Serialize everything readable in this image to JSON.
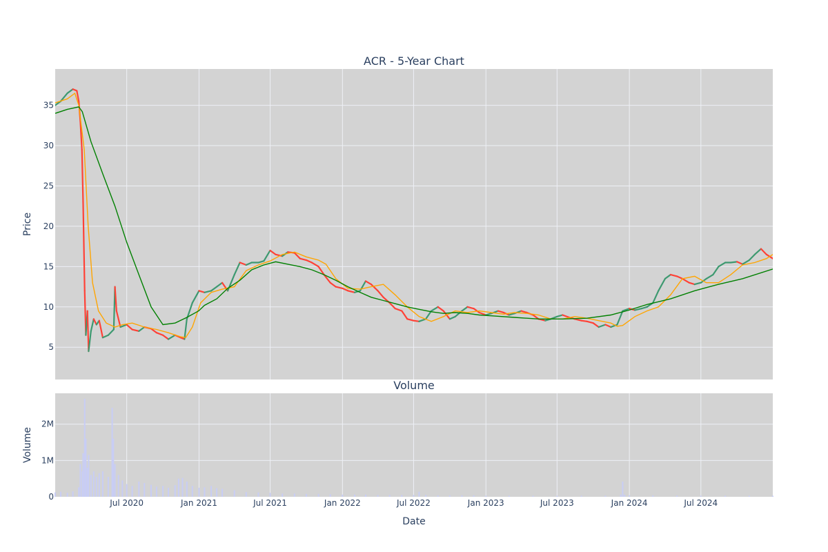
{
  "chart_data": [
    {
      "type": "candlestick",
      "title": "ACR - 5-Year Chart",
      "xlabel": "",
      "ylabel": "Price",
      "ylim": [
        1,
        39.5
      ],
      "xlim": [
        "2020-01-01",
        "2024-12-31"
      ],
      "yticks": [
        5,
        10,
        15,
        20,
        25,
        30,
        35
      ],
      "grid": true,
      "colors": {
        "up": "#3d9970",
        "down": "#ff4136",
        "plot_bg": "#d3d3d3",
        "grid": "#eef0f6"
      },
      "series": [
        {
          "name": "",
          "kind": "close",
          "color": "#3d9970",
          "x": [
            "2020-01-01",
            "2020-01-15",
            "2020-02-01",
            "2020-02-15",
            "2020-02-25",
            "2020-03-01",
            "2020-03-05",
            "2020-03-09",
            "2020-03-12",
            "2020-03-16",
            "2020-03-19",
            "2020-03-23",
            "2020-03-26",
            "2020-04-01",
            "2020-04-08",
            "2020-04-15",
            "2020-04-22",
            "2020-05-01",
            "2020-05-15",
            "2020-05-29",
            "2020-06-01",
            "2020-06-05",
            "2020-06-15",
            "2020-07-01",
            "2020-07-15",
            "2020-08-01",
            "2020-08-15",
            "2020-09-01",
            "2020-09-15",
            "2020-10-01",
            "2020-10-15",
            "2020-11-01",
            "2020-11-15",
            "2020-11-25",
            "2020-12-01",
            "2020-12-15",
            "2021-01-01",
            "2021-01-15",
            "2021-02-01",
            "2021-02-15",
            "2021-03-01",
            "2021-03-15",
            "2021-04-01",
            "2021-04-15",
            "2021-05-01",
            "2021-05-15",
            "2021-06-01",
            "2021-06-15",
            "2021-07-01",
            "2021-07-15",
            "2021-08-01",
            "2021-08-15",
            "2021-09-01",
            "2021-09-15",
            "2021-10-01",
            "2021-10-15",
            "2021-11-01",
            "2021-11-15",
            "2021-12-01",
            "2021-12-15",
            "2022-01-01",
            "2022-01-15",
            "2022-02-01",
            "2022-02-15",
            "2022-03-01",
            "2022-03-15",
            "2022-04-01",
            "2022-04-15",
            "2022-05-01",
            "2022-05-15",
            "2022-06-01",
            "2022-06-15",
            "2022-07-01",
            "2022-07-15",
            "2022-08-01",
            "2022-08-15",
            "2022-09-01",
            "2022-09-15",
            "2022-10-01",
            "2022-10-15",
            "2022-11-01",
            "2022-11-15",
            "2022-12-01",
            "2022-12-15",
            "2023-01-01",
            "2023-01-15",
            "2023-02-01",
            "2023-02-15",
            "2023-03-01",
            "2023-03-15",
            "2023-04-01",
            "2023-04-15",
            "2023-05-01",
            "2023-05-15",
            "2023-06-01",
            "2023-06-15",
            "2023-07-01",
            "2023-07-15",
            "2023-08-01",
            "2023-08-15",
            "2023-09-01",
            "2023-09-15",
            "2023-10-01",
            "2023-10-15",
            "2023-11-01",
            "2023-11-15",
            "2023-12-01",
            "2023-12-15",
            "2024-01-01",
            "2024-01-15",
            "2024-02-01",
            "2024-02-15",
            "2024-03-01",
            "2024-03-15",
            "2024-04-01",
            "2024-04-15",
            "2024-05-01",
            "2024-05-15",
            "2024-06-01",
            "2024-06-15",
            "2024-07-01",
            "2024-07-15",
            "2024-08-01",
            "2024-08-15",
            "2024-09-01",
            "2024-09-15",
            "2024-10-01",
            "2024-10-15",
            "2024-11-01",
            "2024-11-15",
            "2024-12-01",
            "2024-12-15",
            "2024-12-31"
          ],
          "y": [
            35.0,
            35.5,
            36.5,
            37.0,
            36.8,
            35.5,
            33.0,
            29.5,
            23.0,
            12.0,
            6.5,
            9.5,
            4.5,
            7.0,
            8.5,
            7.8,
            8.3,
            6.2,
            6.5,
            7.2,
            12.5,
            9.5,
            7.5,
            7.8,
            7.2,
            7.0,
            7.5,
            7.3,
            6.8,
            6.5,
            6.0,
            6.5,
            6.2,
            6.0,
            8.5,
            10.5,
            12.0,
            11.8,
            12.0,
            12.5,
            13.0,
            12.0,
            14.0,
            15.5,
            15.2,
            15.5,
            15.5,
            15.7,
            17.0,
            16.5,
            16.3,
            16.8,
            16.7,
            16.0,
            15.8,
            15.5,
            15.0,
            14.0,
            13.0,
            12.5,
            12.3,
            12.0,
            11.8,
            12.0,
            13.2,
            12.8,
            12.0,
            11.2,
            10.5,
            9.8,
            9.5,
            8.5,
            8.3,
            8.2,
            8.5,
            9.5,
            10.0,
            9.5,
            8.5,
            8.8,
            9.5,
            10.0,
            9.8,
            9.3,
            9.0,
            9.2,
            9.5,
            9.3,
            9.0,
            9.2,
            9.5,
            9.3,
            9.0,
            8.5,
            8.3,
            8.5,
            8.8,
            9.0,
            8.7,
            8.5,
            8.3,
            8.2,
            8.0,
            7.5,
            7.8,
            7.5,
            7.8,
            9.5,
            9.8,
            9.6,
            9.8,
            10.0,
            10.5,
            12.0,
            13.5,
            14.0,
            13.8,
            13.5,
            13.0,
            12.8,
            13.0,
            13.5,
            14.0,
            15.0,
            15.5,
            15.5,
            15.6,
            15.3,
            15.8,
            16.5,
            17.2,
            16.5,
            16.0
          ]
        },
        {
          "name": "",
          "kind": "moving-average-short",
          "color": "#ffa500",
          "x": [
            "2020-01-01",
            "2020-02-01",
            "2020-02-20",
            "2020-03-01",
            "2020-03-15",
            "2020-03-25",
            "2020-04-05",
            "2020-04-20",
            "2020-05-10",
            "2020-06-01",
            "2020-06-20",
            "2020-07-15",
            "2020-08-15",
            "2020-09-15",
            "2020-10-15",
            "2020-11-15",
            "2020-11-28",
            "2020-12-15",
            "2021-01-05",
            "2021-02-01",
            "2021-03-01",
            "2021-04-01",
            "2021-05-01",
            "2021-06-01",
            "2021-07-01",
            "2021-08-01",
            "2021-09-01",
            "2021-10-01",
            "2021-11-01",
            "2021-11-20",
            "2021-12-15",
            "2022-01-15",
            "2022-02-15",
            "2022-03-15",
            "2022-04-15",
            "2022-05-15",
            "2022-06-15",
            "2022-07-15",
            "2022-08-15",
            "2022-09-15",
            "2022-10-15",
            "2022-11-15",
            "2022-12-15",
            "2023-01-15",
            "2023-02-15",
            "2023-03-15",
            "2023-04-15",
            "2023-05-15",
            "2023-06-15",
            "2023-07-15",
            "2023-08-15",
            "2023-09-15",
            "2023-10-15",
            "2023-11-15",
            "2023-12-01",
            "2023-12-15",
            "2024-01-15",
            "2024-02-15",
            "2024-03-15",
            "2024-04-15",
            "2024-05-15",
            "2024-06-15",
            "2024-07-15",
            "2024-08-15",
            "2024-09-15",
            "2024-10-15",
            "2024-11-15",
            "2024-12-15",
            "2024-12-31"
          ],
          "y": [
            35.3,
            35.8,
            36.5,
            35.0,
            29.5,
            20.0,
            13.0,
            9.5,
            8.0,
            7.5,
            7.8,
            8.0,
            7.5,
            7.2,
            6.8,
            6.3,
            6.2,
            7.5,
            10.5,
            11.8,
            12.2,
            12.5,
            14.5,
            15.2,
            15.7,
            16.5,
            16.8,
            16.2,
            15.8,
            15.3,
            13.5,
            12.3,
            12.2,
            12.5,
            12.8,
            11.5,
            10.0,
            8.8,
            8.2,
            8.8,
            9.5,
            9.3,
            9.5,
            9.3,
            9.1,
            9.3,
            9.2,
            9.0,
            8.5,
            8.5,
            8.8,
            8.6,
            8.3,
            8.0,
            7.6,
            7.7,
            8.8,
            9.5,
            10.0,
            11.5,
            13.5,
            13.8,
            13.0,
            13.0,
            14.0,
            15.2,
            15.5,
            16.0,
            16.5
          ]
        },
        {
          "name": "",
          "kind": "moving-average-long",
          "color": "#008000",
          "x": [
            "2020-01-01",
            "2020-02-01",
            "2020-03-01",
            "2020-03-10",
            "2020-04-01",
            "2020-05-01",
            "2020-06-01",
            "2020-07-01",
            "2020-08-01",
            "2020-09-01",
            "2020-10-01",
            "2020-11-01",
            "2020-12-01",
            "2020-12-31",
            "2021-01-15",
            "2021-02-15",
            "2021-03-15",
            "2021-04-15",
            "2021-05-15",
            "2021-06-15",
            "2021-07-15",
            "2021-08-15",
            "2021-09-15",
            "2021-10-15",
            "2021-11-15",
            "2021-12-15",
            "2022-01-15",
            "2022-02-15",
            "2022-03-15",
            "2022-04-15",
            "2022-05-15",
            "2022-06-15",
            "2022-07-15",
            "2022-08-15",
            "2022-09-15",
            "2022-10-15",
            "2022-11-15",
            "2022-12-15",
            "2023-01-15",
            "2023-03-15",
            "2023-05-15",
            "2023-07-15",
            "2023-09-15",
            "2023-11-15",
            "2023-12-31",
            "2024-02-15",
            "2024-04-15",
            "2024-06-15",
            "2024-08-15",
            "2024-10-15",
            "2024-12-31"
          ],
          "y": [
            34.0,
            34.5,
            34.8,
            34.2,
            30.5,
            26.5,
            22.5,
            18.0,
            14.0,
            10.0,
            7.8,
            8.0,
            8.7,
            9.5,
            10.2,
            11.0,
            12.3,
            13.3,
            14.6,
            15.2,
            15.6,
            15.3,
            15.0,
            14.6,
            14.0,
            13.3,
            12.5,
            11.8,
            11.2,
            10.8,
            10.4,
            10.0,
            9.7,
            9.4,
            9.2,
            9.3,
            9.2,
            9.0,
            8.9,
            8.7,
            8.5,
            8.5,
            8.6,
            9.0,
            9.6,
            10.3,
            11.0,
            12.0,
            12.8,
            13.5,
            14.7
          ]
        }
      ]
    },
    {
      "type": "bar",
      "title": "Volume",
      "xlabel": "Date",
      "ylabel": "Volume",
      "ylim": [
        0,
        2850000
      ],
      "xlim": [
        "2020-01-01",
        "2024-12-31"
      ],
      "yticks": [
        0,
        1000000,
        2000000
      ],
      "ytick_labels": [
        "0",
        "1M",
        "2M"
      ],
      "xticks": [
        "2020-07-01",
        "2021-01-01",
        "2021-07-01",
        "2022-01-01",
        "2022-07-01",
        "2023-01-01",
        "2023-07-01",
        "2024-01-01",
        "2024-07-01"
      ],
      "xtick_labels": [
        "Jul 2020",
        "Jan 2021",
        "Jul 2021",
        "Jan 2022",
        "Jul 2022",
        "Jan 2023",
        "Jul 2023",
        "Jan 2024",
        "Jul 2024"
      ],
      "grid": true,
      "colors": {
        "bar": "#c8cdf5",
        "plot_bg": "#d3d3d3",
        "grid": "#eef0f6"
      },
      "series": [
        {
          "name": "",
          "x": [
            "2020-01-01",
            "2020-01-15",
            "2020-02-01",
            "2020-02-15",
            "2020-03-01",
            "2020-03-05",
            "2020-03-10",
            "2020-03-12",
            "2020-03-16",
            "2020-03-19",
            "2020-03-23",
            "2020-03-26",
            "2020-04-01",
            "2020-04-08",
            "2020-04-15",
            "2020-04-22",
            "2020-05-01",
            "2020-05-15",
            "2020-05-25",
            "2020-05-28",
            "2020-06-01",
            "2020-06-10",
            "2020-06-20",
            "2020-07-01",
            "2020-07-15",
            "2020-08-01",
            "2020-08-15",
            "2020-09-01",
            "2020-09-15",
            "2020-10-01",
            "2020-10-15",
            "2020-11-01",
            "2020-11-10",
            "2020-11-20",
            "2020-12-01",
            "2020-12-15",
            "2021-01-01",
            "2021-01-15",
            "2021-02-01",
            "2021-02-15",
            "2021-03-01",
            "2021-04-01",
            "2021-05-01",
            "2021-06-01",
            "2021-07-01",
            "2021-08-01",
            "2021-09-01",
            "2021-10-01",
            "2021-11-01",
            "2021-12-01",
            "2022-01-01",
            "2022-02-01",
            "2022-03-01",
            "2022-04-01",
            "2022-05-01",
            "2022-06-01",
            "2022-07-01",
            "2022-07-15",
            "2022-08-01",
            "2022-09-01",
            "2022-10-01",
            "2022-11-01",
            "2022-12-01",
            "2023-01-01",
            "2023-03-01",
            "2023-05-01",
            "2023-07-01",
            "2023-09-01",
            "2023-11-01",
            "2023-12-10",
            "2023-12-15",
            "2023-12-20",
            "2024-01-01",
            "2024-03-01",
            "2024-05-01",
            "2024-07-01",
            "2024-09-01",
            "2024-11-01",
            "2024-12-31"
          ],
          "values": [
            120000,
            140000,
            110000,
            150000,
            260000,
            900000,
            700000,
            1200000,
            2700000,
            1600000,
            800000,
            1150000,
            600000,
            700000,
            550000,
            650000,
            700000,
            550000,
            2450000,
            1600000,
            900000,
            600000,
            450000,
            350000,
            300000,
            420000,
            380000,
            330000,
            280000,
            300000,
            250000,
            320000,
            500000,
            520000,
            420000,
            300000,
            250000,
            260000,
            300000,
            240000,
            220000,
            180000,
            130000,
            120000,
            110000,
            90000,
            90000,
            80000,
            80000,
            70000,
            60000,
            60000,
            60000,
            50000,
            50000,
            50000,
            50000,
            140000,
            50000,
            40000,
            40000,
            40000,
            40000,
            30000,
            30000,
            30000,
            30000,
            30000,
            30000,
            60000,
            420000,
            60000,
            40000,
            40000,
            35000,
            30000,
            30000,
            30000,
            30000
          ]
        }
      ]
    }
  ]
}
